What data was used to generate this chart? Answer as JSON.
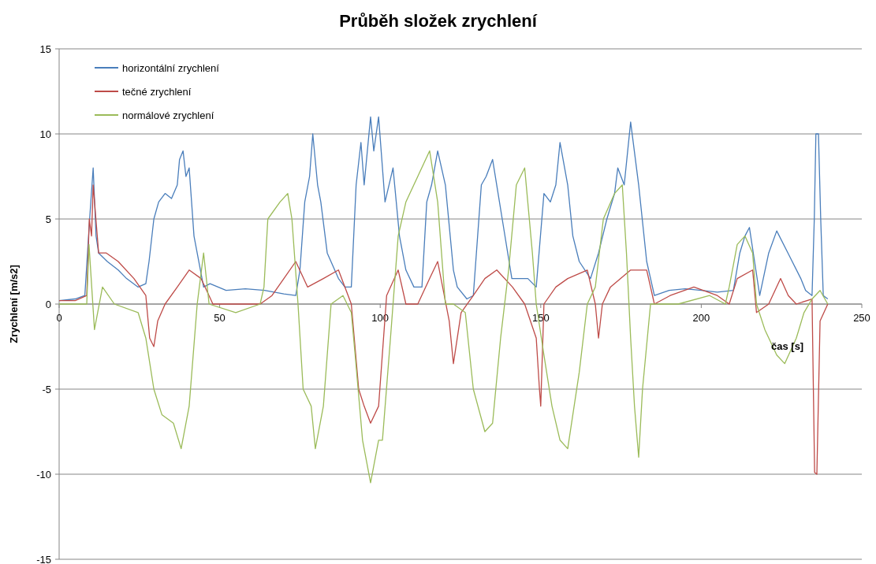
{
  "chart_data": {
    "type": "line",
    "title": "Průběh složek zrychlení",
    "xlabel": "čas [s]",
    "ylabel": "Zrychlení [m/s2]",
    "xlim": [
      0,
      250
    ],
    "ylim": [
      -15,
      15
    ],
    "xticks": [
      0,
      50,
      100,
      150,
      200,
      250
    ],
    "yticks": [
      -15,
      -10,
      -5,
      0,
      5,
      10,
      15
    ],
    "grid": "y",
    "legend": "top left",
    "marker": "none",
    "line_style": "solid",
    "series": [
      {
        "name": "horizontální zrychlení",
        "color": "#4a7ebb",
        "x": [
          0,
          5,
          8,
          9.5,
          10.6,
          11.5,
          12.3,
          15,
          18.4,
          21,
          24.6,
          27,
          28,
          29.5,
          31,
          33,
          35,
          36.8,
          37.5,
          38.6,
          39.5,
          40.5,
          42,
          45,
          47,
          52,
          58,
          64,
          70,
          73.7,
          75,
          76.5,
          78,
          79,
          80.5,
          81.5,
          83.5,
          87,
          89,
          91,
          92.5,
          94,
          95,
          97,
          98,
          99.5,
          101.5,
          104,
          106,
          108,
          110.5,
          113,
          114.5,
          116,
          117.9,
          120.3,
          122.8,
          124,
          127,
          129,
          131.5,
          133,
          135,
          138,
          141,
          146,
          148.6,
          151,
          153,
          154.7,
          156,
          158.4,
          160,
          162,
          165.5,
          168,
          170.6,
          173,
          174,
          176,
          178,
          180.5,
          183,
          185.4,
          190,
          195,
          200,
          205,
          210,
          212,
          213.6,
          215,
          217,
          218.2,
          221,
          223.5,
          227,
          231,
          232.5,
          234.5,
          235.2,
          235.7,
          236.5,
          237.2,
          238,
          239.4
        ],
        "values": [
          0.2,
          0.3,
          0.5,
          5,
          8,
          4,
          3,
          2.5,
          2,
          1.5,
          1,
          1.2,
          2.5,
          5,
          6,
          6.5,
          6.2,
          7,
          8.5,
          9,
          7.5,
          8,
          4,
          1,
          1.2,
          0.8,
          0.9,
          0.8,
          0.6,
          0.5,
          2,
          6,
          7.5,
          10,
          7,
          6,
          3,
          1.5,
          1,
          1,
          7,
          9.5,
          7,
          11,
          9,
          11,
          6,
          8,
          4,
          2,
          1,
          1,
          6,
          7,
          9,
          7,
          2,
          1,
          0.3,
          0.5,
          7,
          7.5,
          8.5,
          5,
          1.5,
          1.5,
          1,
          6.5,
          6,
          7,
          9.5,
          7,
          4,
          2.5,
          1.5,
          3,
          5,
          6.5,
          8,
          7,
          10.7,
          7,
          2.5,
          0.5,
          0.8,
          0.9,
          0.8,
          0.7,
          0.8,
          3,
          4,
          4.5,
          2,
          0.5,
          3,
          4.3,
          3,
          1.5,
          0.8,
          0.5,
          5,
          10,
          10,
          5,
          0.5,
          0.3
        ]
      },
      {
        "name": "tečné zrychlení",
        "color": "#be4b48",
        "x": [
          0,
          5,
          8.6,
          9.4,
          10.1,
          10.6,
          12.3,
          14.7,
          18.4,
          23.3,
          27,
          28.2,
          29.5,
          30.7,
          33,
          36.8,
          40.5,
          44.2,
          47.9,
          55,
          62.6,
          66.3,
          70,
          73.7,
          77.4,
          82.3,
          87,
          91,
          93.3,
          95,
          97,
          99.5,
          102,
          105.6,
          108,
          111.7,
          115.4,
          117.9,
          121.5,
          122.8,
          125.2,
          129,
          132.6,
          136.3,
          141.2,
          145,
          148.6,
          149.6,
          150,
          151,
          154.7,
          158.4,
          164.5,
          167,
          168,
          169.2,
          171.7,
          178,
          183,
          185.4,
          190.3,
          197.7,
          205,
          208.7,
          211.2,
          216,
          217.2,
          221,
          224.7,
          227.1,
          229.6,
          234.5,
          235.3,
          236,
          237,
          239.4
        ],
        "values": [
          0.2,
          0.2,
          0.5,
          5,
          4,
          7,
          3,
          3,
          2.5,
          1.5,
          0.5,
          -2,
          -2.5,
          -1,
          0,
          1,
          2,
          1.5,
          0,
          0,
          0,
          0.5,
          1.5,
          2.5,
          1,
          1.5,
          2,
          0,
          -5,
          -6,
          -7,
          -6,
          0.5,
          2,
          0,
          0,
          1.5,
          2.5,
          -1,
          -3.5,
          -0.5,
          0.5,
          1.5,
          2,
          1,
          0,
          -2,
          -5,
          -6,
          0,
          1,
          1.5,
          2,
          0,
          -2,
          0,
          1,
          2,
          2,
          0,
          0.5,
          1,
          0.5,
          0,
          1.5,
          2,
          -0.5,
          0,
          1.5,
          0.5,
          0,
          0.3,
          -9.9,
          -10,
          -1,
          0
        ]
      },
      {
        "name": "normálové zrychlení",
        "color": "#9bbb59",
        "x": [
          0,
          5,
          8.6,
          9.3,
          11,
          13.5,
          17.2,
          24.6,
          27,
          29.5,
          32,
          35.6,
          38,
          40.5,
          43,
          45,
          46.7,
          55,
          62.6,
          63.8,
          65,
          68.8,
          71.2,
          72.5,
          74.4,
          76,
          78.5,
          79.8,
          82.3,
          84.7,
          88.4,
          91,
          92.2,
          94.5,
          97,
          99.5,
          100.7,
          103.2,
          105.6,
          108,
          111.7,
          115.4,
          117.9,
          120.3,
          122.8,
          126.5,
          129,
          132.6,
          135,
          137.5,
          140,
          142.4,
          145,
          147.4,
          148.6,
          151,
          153.5,
          156,
          158.4,
          162,
          164.5,
          167,
          169.5,
          173,
          175.4,
          176.7,
          178,
          179.2,
          180.5,
          181.7,
          184.2,
          192.8,
          202.6,
          207.5,
          208.7,
          211.2,
          213.6,
          216,
          217.2,
          219.8,
          223.5,
          226,
          229.6,
          232,
          234.5,
          237,
          239.4
        ],
        "values": [
          0,
          0,
          0,
          3.5,
          -1.5,
          1,
          0,
          -0.5,
          -2,
          -5,
          -6.5,
          -7,
          -8.5,
          -6,
          0,
          3,
          0,
          -0.5,
          0,
          1,
          5,
          6,
          6.5,
          5,
          0,
          -5,
          -6,
          -8.5,
          -6,
          0,
          0.5,
          -0.5,
          -3,
          -8,
          -10.5,
          -8,
          -8,
          -2,
          4,
          6,
          7.5,
          9,
          6,
          0,
          0,
          -0.5,
          -5,
          -7.5,
          -7,
          -2,
          2,
          7,
          8,
          3,
          0,
          -3,
          -6,
          -8,
          -8.5,
          -4,
          0,
          1,
          5,
          6.5,
          7,
          3,
          -2,
          -6,
          -9,
          -5,
          0,
          0,
          0.5,
          0,
          1,
          3.5,
          4,
          3,
          0,
          -1.5,
          -3,
          -3.5,
          -2,
          -0.5,
          0.3,
          0.8,
          0
        ]
      }
    ]
  }
}
